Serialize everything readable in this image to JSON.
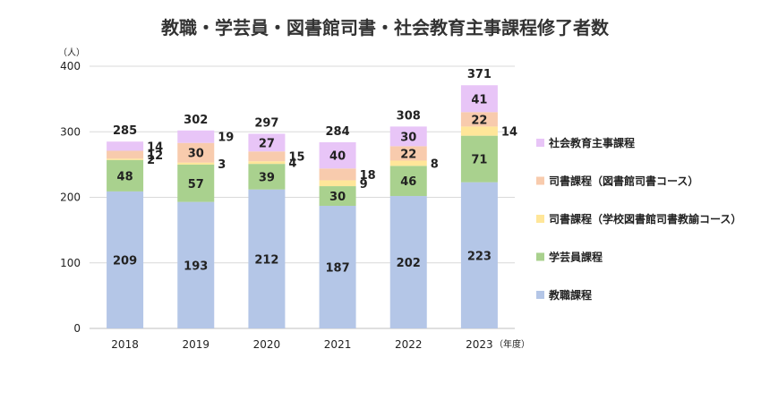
{
  "chart_data": {
    "type": "bar",
    "stacked": true,
    "title": "教職・学芸員・図書館司書・社会教育主事課程修了者数",
    "y_unit": "（人）",
    "x_unit": "（年度）",
    "categories": [
      "2018",
      "2019",
      "2020",
      "2021",
      "2022",
      "2023"
    ],
    "ylim": [
      0,
      400
    ],
    "yticks": [
      0,
      100,
      200,
      300,
      400
    ],
    "grid": true,
    "legend_position": "right",
    "series": [
      {
        "name": "教職課程",
        "color": "#b4c6e7",
        "values": [
          209,
          193,
          212,
          187,
          202,
          223
        ],
        "labels": [
          "209",
          "193",
          "212",
          "187",
          "202",
          "223"
        ]
      },
      {
        "name": "学芸員課程",
        "color": "#a9d18e",
        "values": [
          48,
          57,
          39,
          30,
          46,
          71
        ],
        "labels": [
          "48",
          "57",
          "39",
          "30",
          "46",
          "71"
        ]
      },
      {
        "name": "司書課程（学校図書館司書教諭コース）",
        "color": "#ffe699",
        "values": [
          2,
          3,
          4,
          9,
          8,
          14
        ],
        "labels": [
          "2",
          "3",
          "4",
          "9",
          "8",
          "14"
        ]
      },
      {
        "name": "司書課程（図書館司書コース）",
        "color": "#f8cbad",
        "values": [
          12,
          30,
          15,
          18,
          22,
          22
        ],
        "labels": [
          "12",
          "30",
          "15",
          "18",
          "22",
          "22"
        ]
      },
      {
        "name": "社会教育主事課程",
        "color": "#e8c5f7",
        "values": [
          14,
          19,
          27,
          40,
          30,
          41
        ],
        "labels": [
          "14",
          "19",
          "27",
          "40",
          "30",
          "41"
        ]
      }
    ],
    "totals": [
      "285",
      "302",
      "297",
      "284",
      "308",
      "371"
    ]
  }
}
